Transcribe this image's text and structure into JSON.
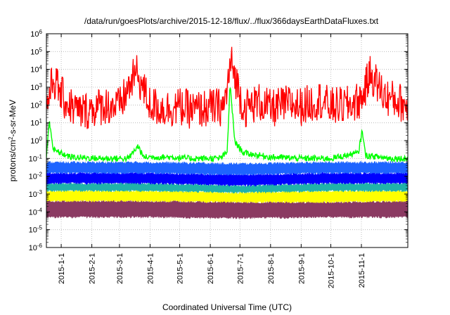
{
  "chart_data": {
    "type": "line",
    "title": "/data/run/goesPlots/archive/2015-12-18/flux/../flux/366daysEarthDataFluxes.txt",
    "xlabel": "Coordinated Universal Time (UTC)",
    "ylabel": "protons/cm2-s-sr-MeV",
    "ylabel_parts": {
      "pre": "protons/cm",
      "sup": "2",
      "post": "-s-sr-MeV"
    },
    "yscale": "log",
    "ylim": [
      1e-06,
      1000000.0
    ],
    "y_ticks": [
      {
        "value": 1e-06,
        "base": "10",
        "exp": "-6"
      },
      {
        "value": 1e-05,
        "base": "10",
        "exp": "-5"
      },
      {
        "value": 0.0001,
        "base": "10",
        "exp": "-4"
      },
      {
        "value": 0.001,
        "base": "10",
        "exp": "-3"
      },
      {
        "value": 0.01,
        "base": "10",
        "exp": "-2"
      },
      {
        "value": 0.1,
        "base": "10",
        "exp": "-1"
      },
      {
        "value": 1.0,
        "base": "10",
        "exp": "0"
      },
      {
        "value": 10.0,
        "base": "10",
        "exp": "1"
      },
      {
        "value": 100.0,
        "base": "10",
        "exp": "2"
      },
      {
        "value": 1000.0,
        "base": "10",
        "exp": "3"
      },
      {
        "value": 10000.0,
        "base": "10",
        "exp": "4"
      },
      {
        "value": 100000.0,
        "base": "10",
        "exp": "5"
      },
      {
        "value": 1000000.0,
        "base": "10",
        "exp": "6"
      }
    ],
    "xlim": [
      "2014-12-17",
      "2015-12-18"
    ],
    "x_ticks": [
      {
        "date": "2015-01-01",
        "label": "2015-1-1"
      },
      {
        "date": "2015-02-01",
        "label": "2015-2-1"
      },
      {
        "date": "2015-03-01",
        "label": "2015-3-1"
      },
      {
        "date": "2015-04-01",
        "label": "2015-4-1"
      },
      {
        "date": "2015-05-01",
        "label": "2015-5-1"
      },
      {
        "date": "2015-06-01",
        "label": "2015-6-1"
      },
      {
        "date": "2015-07-01",
        "label": "2015-7-1"
      },
      {
        "date": "2015-08-01",
        "label": "2015-8-1"
      },
      {
        "date": "2015-09-01",
        "label": "2015-9-1"
      },
      {
        "date": "2015-10-01",
        "label": "2015-10-1"
      },
      {
        "date": "2015-11-01",
        "label": "2015-11-1"
      }
    ],
    "grid": true,
    "colors": [
      "#8b3a62",
      "#ffff00",
      "#20b2aa",
      "#00ff00",
      "#0000ff",
      "#1e64ff",
      "#ff0000"
    ],
    "series": [
      {
        "color": "#8b3a62",
        "style": "band",
        "x": [
          "2015-01-01",
          "2015-04-01",
          "2015-07-01",
          "2015-10-01",
          "2015-12-18"
        ],
        "low": [
          5e-05,
          5e-05,
          4.5e-05,
          5e-05,
          5e-05
        ],
        "high": [
          0.0004,
          0.0004,
          0.00035,
          0.00035,
          0.0004
        ]
      },
      {
        "color": "#ffff00",
        "style": "band",
        "x": [
          "2015-01-01",
          "2015-04-01",
          "2015-07-01",
          "2015-10-01",
          "2015-12-18"
        ],
        "low": [
          0.0004,
          0.0004,
          0.00035,
          0.00035,
          0.0004
        ],
        "high": [
          0.0015,
          0.0015,
          0.0012,
          0.0015,
          0.0015
        ]
      },
      {
        "color": "#20b2aa",
        "style": "band",
        "x": [
          "2015-01-01",
          "2015-04-01",
          "2015-07-01",
          "2015-10-01",
          "2015-12-18"
        ],
        "low": [
          0.0015,
          0.0015,
          0.0012,
          0.0015,
          0.0015
        ],
        "high": [
          0.004,
          0.004,
          0.003,
          0.004,
          0.004
        ]
      },
      {
        "color": "#0000ff",
        "style": "band",
        "x": [
          "2015-01-01",
          "2015-04-01",
          "2015-07-01",
          "2015-10-01",
          "2015-12-18"
        ],
        "low": [
          0.004,
          0.004,
          0.003,
          0.004,
          0.004
        ],
        "high": [
          0.015,
          0.015,
          0.012,
          0.015,
          0.015
        ]
      },
      {
        "color": "#1e64ff",
        "style": "band",
        "x": [
          "2015-01-01",
          "2015-04-01",
          "2015-07-01",
          "2015-10-01",
          "2015-12-18"
        ],
        "low": [
          0.015,
          0.015,
          0.012,
          0.015,
          0.015
        ],
        "high": [
          0.06,
          0.06,
          0.05,
          0.06,
          0.06
        ]
      },
      {
        "color": "#00ff00",
        "style": "line",
        "x": [
          "2014-12-17",
          "2014-12-20",
          "2014-12-24",
          "2015-01-10",
          "2015-02-10",
          "2015-03-10",
          "2015-03-20",
          "2015-03-25",
          "2015-04-20",
          "2015-05-10",
          "2015-06-10",
          "2015-06-18",
          "2015-06-21",
          "2015-06-23",
          "2015-06-26",
          "2015-07-05",
          "2015-08-01",
          "2015-09-01",
          "2015-10-01",
          "2015-10-29",
          "2015-11-02",
          "2015-11-05",
          "2015-12-01",
          "2015-12-18"
        ],
        "y": [
          0.1,
          15,
          0.3,
          0.12,
          0.1,
          0.1,
          0.5,
          0.12,
          0.12,
          0.1,
          0.1,
          0.2,
          1500,
          60,
          0.8,
          0.2,
          0.12,
          0.1,
          0.1,
          0.2,
          4,
          0.15,
          0.1,
          0.1
        ]
      },
      {
        "color": "#ff0000",
        "style": "noisy",
        "x": [
          "2014-12-17",
          "2014-12-24",
          "2015-01-05",
          "2015-01-20",
          "2015-02-01",
          "2015-02-15",
          "2015-03-01",
          "2015-03-18",
          "2015-04-01",
          "2015-04-15",
          "2015-05-01",
          "2015-05-15",
          "2015-06-01",
          "2015-06-15",
          "2015-06-22",
          "2015-07-05",
          "2015-07-20",
          "2015-08-01",
          "2015-08-20",
          "2015-09-01",
          "2015-09-20",
          "2015-10-01",
          "2015-10-20",
          "2015-11-01",
          "2015-11-10",
          "2015-11-25",
          "2015-12-10",
          "2015-12-18"
        ],
        "y": [
          80,
          3000,
          150,
          40,
          60,
          100,
          80,
          7000,
          100,
          60,
          80,
          50,
          70,
          80,
          25000,
          60,
          150,
          60,
          120,
          80,
          200,
          80,
          100,
          200,
          6000,
          300,
          150,
          80
        ]
      }
    ]
  }
}
